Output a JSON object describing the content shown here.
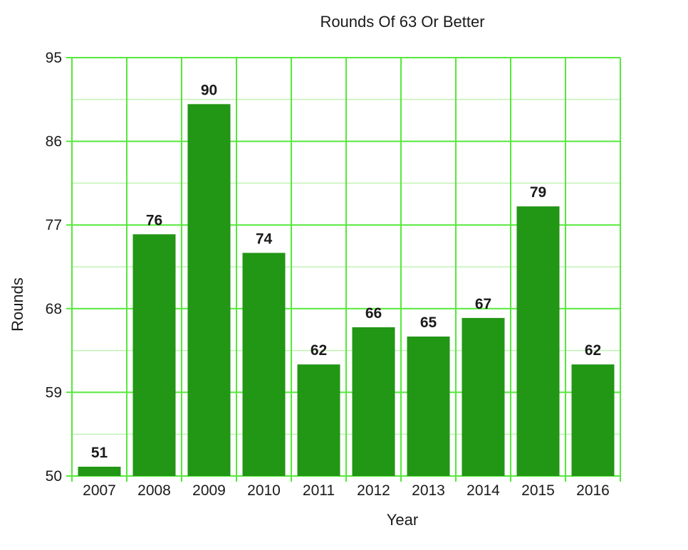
{
  "chart_data": {
    "type": "bar",
    "title": "Rounds Of 63 Or Better",
    "xlabel": "Year",
    "ylabel": "Rounds",
    "categories": [
      "2007",
      "2008",
      "2009",
      "2010",
      "2011",
      "2012",
      "2013",
      "2014",
      "2015",
      "2016"
    ],
    "values": [
      51,
      76,
      90,
      74,
      62,
      66,
      65,
      67,
      79,
      62
    ],
    "ylim": [
      50,
      95
    ],
    "yticks": [
      "50",
      "59",
      "68",
      "77",
      "86",
      "95"
    ],
    "grid": true,
    "legend": "none",
    "colors": {
      "bar": "#229615",
      "grid_major": "#55e83a",
      "grid_minor": "#c2f3b5",
      "text": "#1a1a1a"
    }
  }
}
